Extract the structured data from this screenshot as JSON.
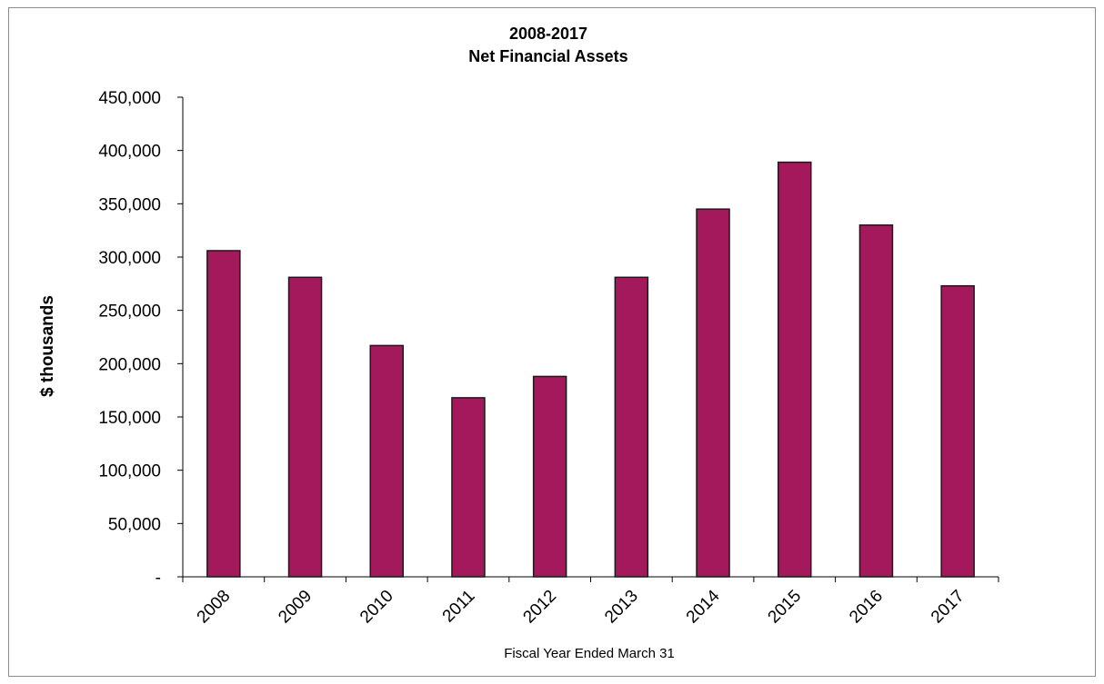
{
  "chart_data": {
    "type": "bar",
    "title": "2008-2017",
    "subtitle": "Net Financial Assets",
    "xlabel": "Fiscal Year Ended March 31",
    "ylabel": "$ thousands",
    "categories": [
      "2008",
      "2009",
      "2010",
      "2011",
      "2012",
      "2013",
      "2014",
      "2015",
      "2016",
      "2017"
    ],
    "values": [
      306000,
      281000,
      217000,
      168000,
      188000,
      281000,
      345000,
      389000,
      330000,
      273000
    ],
    "ylim": [
      0,
      450000
    ],
    "yticks": [
      0,
      50000,
      100000,
      150000,
      200000,
      250000,
      300000,
      350000,
      400000,
      450000
    ],
    "ytick_labels": [
      "-",
      "50,000",
      "100,000",
      "150,000",
      "200,000",
      "250,000",
      "300,000",
      "350,000",
      "400,000",
      "450,000"
    ],
    "grid": false,
    "legend": "none",
    "bar_color": "#a3195b",
    "bar_edge_color": "#1a1a1a"
  }
}
